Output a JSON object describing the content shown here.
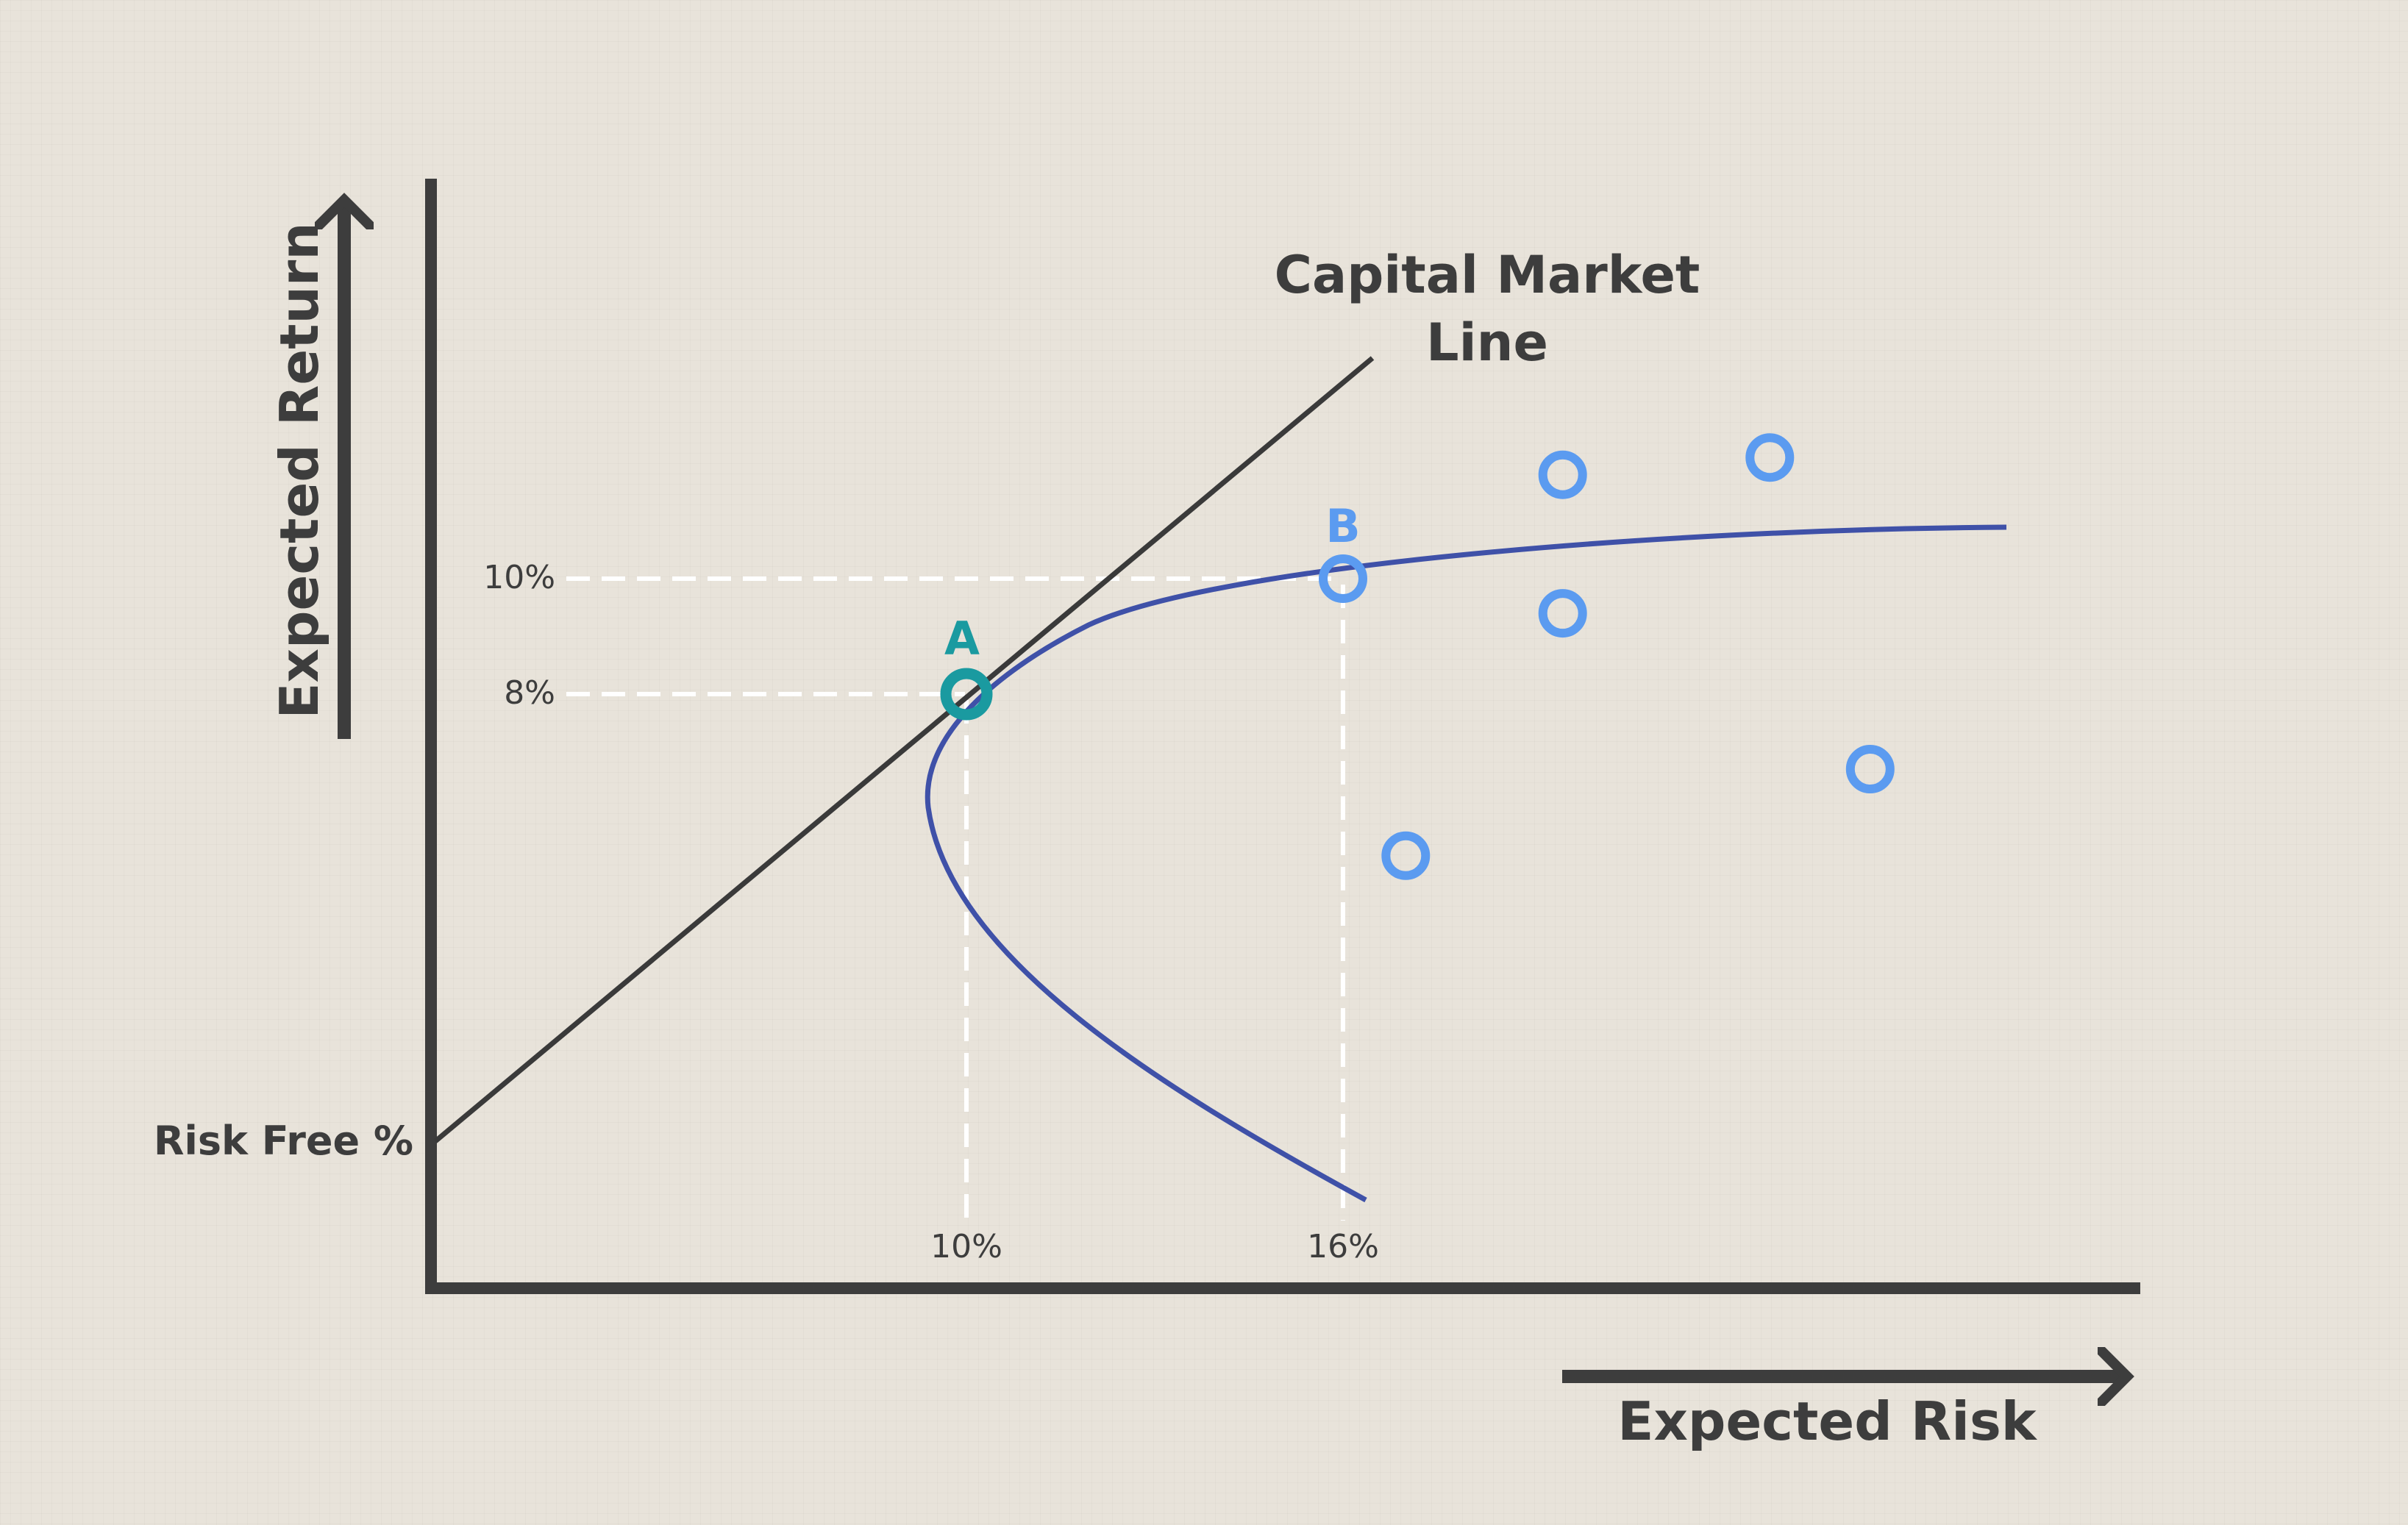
{
  "chart_data": {
    "type": "line",
    "x_axis_label": "Expected Risk",
    "y_axis_label": "Expected Return",
    "y_intercept_label": "Risk Free %",
    "x_ticks": [
      "10%",
      "16%"
    ],
    "y_ticks": [
      "10%",
      "8%"
    ],
    "lines": [
      {
        "label": "Capital Market Line",
        "label_lines": [
          "Capital Market",
          "Line"
        ],
        "color": "#3a3a3a"
      },
      {
        "label": "",
        "color": "#3f51a8"
      }
    ],
    "points": [
      {
        "label": "A",
        "x": 10,
        "y": 8,
        "color": "#1a9aa0"
      },
      {
        "label": "B",
        "x": 16,
        "y": 10,
        "color": "#5b9bf0"
      }
    ],
    "scatter": [
      {
        "x": 17.0,
        "y": 5.2
      },
      {
        "x": 19.5,
        "y": 9.4
      },
      {
        "x": 19.5,
        "y": 11.8
      },
      {
        "x": 22.8,
        "y": 12.1
      },
      {
        "x": 24.4,
        "y": 6.7
      }
    ],
    "scatter_color": "#5b9bf0",
    "axis_color": "#3d3d3d",
    "guide_color": "#ffffff"
  }
}
